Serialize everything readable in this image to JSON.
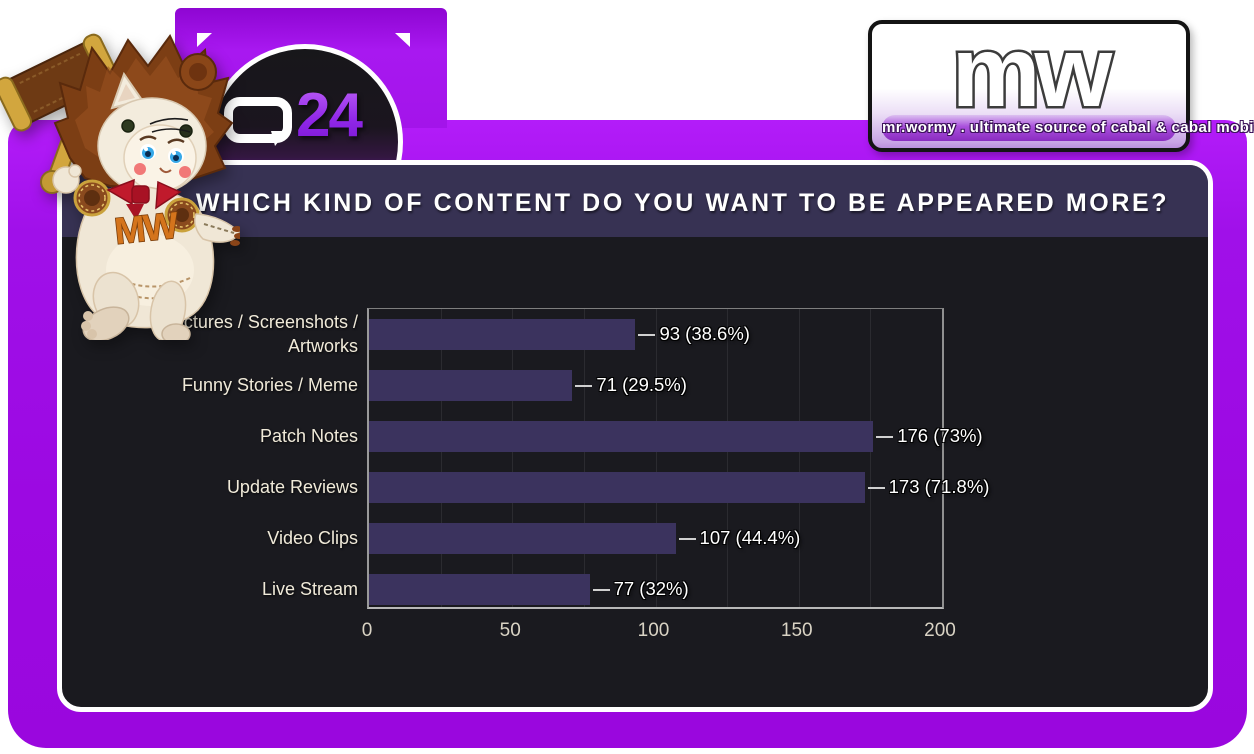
{
  "title": "WHICH KIND OF CONTENT DO YOU WANT TO BE APPEARED MORE?",
  "badge": {
    "q": "Q",
    "number": "24"
  },
  "logo": {
    "letters": "mw",
    "tagline": "mr.wormy . ultimate source of cabal & cabal mobile"
  },
  "mascot": {
    "monogram": "MW"
  },
  "chart_data": {
    "type": "bar",
    "orientation": "horizontal",
    "title": "WHICH KIND OF CONTENT DO YOU WANT TO BE APPEARED MORE?",
    "categories": [
      "Pictures / Screenshots /\nArtworks",
      "Funny Stories / Meme",
      "Patch Notes",
      "Update Reviews",
      "Video Clips",
      "Live Stream"
    ],
    "values": [
      93,
      71,
      176,
      173,
      107,
      77
    ],
    "value_labels": [
      "93 (38.6%)",
      "71 (29.5%)",
      "176 (73%)",
      "173 (71.8%)",
      "107 (44.4%)",
      "77 (32%)"
    ],
    "xlabel": "",
    "ylabel": "",
    "xlim": [
      0,
      200
    ],
    "xticks": [
      0,
      50,
      100,
      150,
      200
    ],
    "grid_step": 25,
    "grid": true,
    "legend": false,
    "bar_color": "#3b335e"
  },
  "colors": {
    "frame_purple": "#9d0ce6",
    "panel_bg": "#1a1a1f",
    "title_band": "#373253",
    "bar": "#3b335e",
    "value_text": "#ffffff",
    "category_text": "#f0ead9",
    "tick_text": "#d9d3c4"
  }
}
